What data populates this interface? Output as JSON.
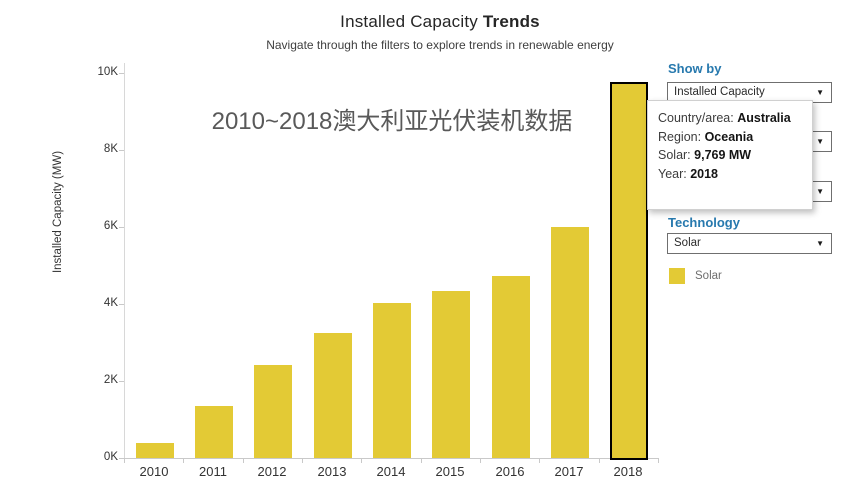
{
  "header": {
    "title_regular": "Installed Capacity ",
    "title_bold": "Trends",
    "subtitle": "Navigate through the filters to explore trends in renewable energy"
  },
  "chart_data": {
    "type": "bar",
    "title": "Installed Capacity Trends",
    "annotation": "2010~2018澳大利亚光伏装机数据",
    "categories": [
      "2010",
      "2011",
      "2012",
      "2013",
      "2014",
      "2015",
      "2016",
      "2017",
      "2018"
    ],
    "series": [
      {
        "name": "Solar",
        "values": [
          400,
          1360,
          2420,
          3240,
          4020,
          4340,
          4740,
          6000,
          9769
        ]
      }
    ],
    "selected_category": "2018",
    "selected_value_label": "9,769 MW",
    "xlabel": "",
    "ylabel": "Installed Capacity (MW)",
    "ylim": [
      0,
      10260
    ],
    "y_ticks": [
      {
        "value": 0,
        "label": "0K"
      },
      {
        "value": 2000,
        "label": "2K"
      },
      {
        "value": 4000,
        "label": "4K"
      },
      {
        "value": 6000,
        "label": "6K"
      },
      {
        "value": 8000,
        "label": "8K"
      },
      {
        "value": 10000,
        "label": "10K"
      }
    ],
    "grid": false,
    "legend_position": "right",
    "bar_color": "#e3ca35",
    "selected_outline_color": "#000000"
  },
  "filters": {
    "show_by_label": "Show by",
    "show_by_value": "Installed Capacity",
    "technology_label": "Technology",
    "technology_value": "Solar"
  },
  "tooltip": {
    "rows": [
      {
        "label": "Country/area: ",
        "value": "Australia"
      },
      {
        "label": "Region: ",
        "value": "Oceania"
      },
      {
        "label": "Solar: ",
        "value": "9,769 MW"
      },
      {
        "label": "Year: ",
        "value": "2018"
      }
    ]
  },
  "legend": {
    "items": [
      {
        "label": "Solar",
        "color": "#e3ca35"
      }
    ]
  },
  "colors": {
    "accent_blue": "#2779ae",
    "bar_yellow": "#e3ca35"
  }
}
